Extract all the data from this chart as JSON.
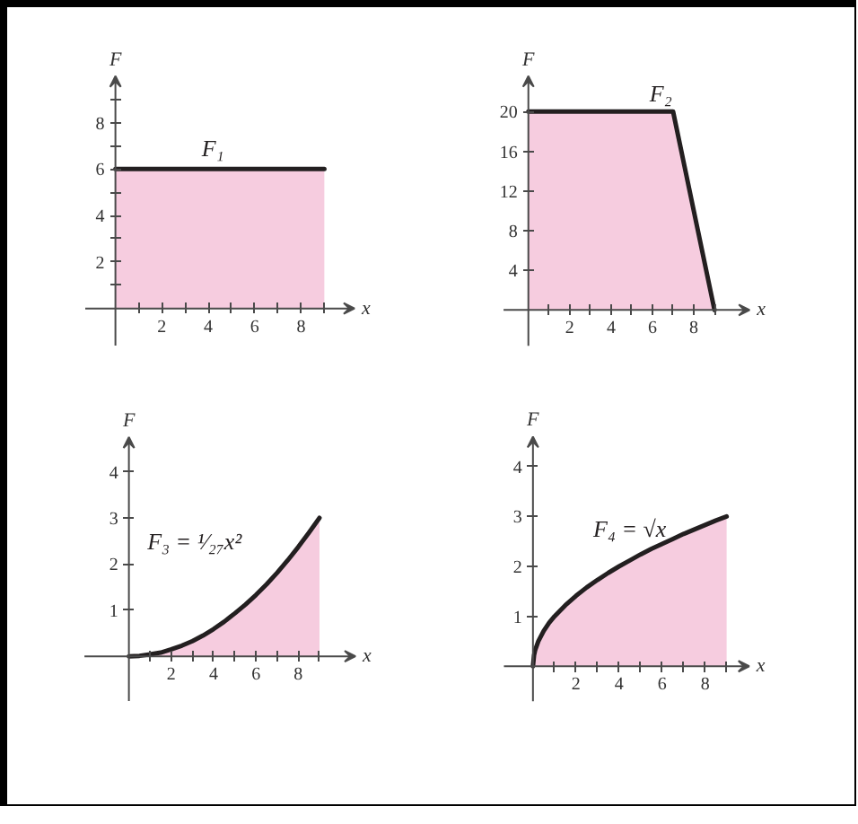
{
  "chart_data": [
    {
      "type": "area",
      "xlabel": "x",
      "ylabel": "F",
      "x": [
        0,
        9
      ],
      "series": [
        {
          "color": "#f6ccdf",
          "values": [
            6,
            6
          ]
        }
      ],
      "xlim": [
        -1.3,
        10.3
      ],
      "ylim": [
        -1.6,
        10
      ],
      "xticks": [
        {
          "value": 1,
          "label": null
        },
        2,
        {
          "value": 3,
          "label": null
        },
        4,
        {
          "value": 5,
          "label": null
        },
        6,
        {
          "value": 7,
          "label": null
        },
        8,
        {
          "value": 9,
          "label": null
        }
      ],
      "yticks": [
        {
          "value": 1,
          "label": null
        },
        2,
        {
          "value": 3,
          "label": null
        },
        4,
        {
          "value": 5,
          "label": null
        },
        6,
        {
          "value": 7,
          "label": null
        },
        8,
        {
          "value": 9,
          "label": null
        }
      ],
      "annotations": [
        "F₁"
      ]
    },
    {
      "type": "area",
      "xlabel": "x",
      "ylabel": "F",
      "x": [
        0,
        7,
        9
      ],
      "series": [
        {
          "color": "#f6ccdf",
          "values": [
            20,
            20,
            0
          ]
        }
      ],
      "xlim": [
        -1.2,
        10.7
      ],
      "ylim": [
        -3.6,
        23.6
      ],
      "xticks": [
        {
          "value": 1,
          "label": null
        },
        2,
        {
          "value": 3,
          "label": null
        },
        4,
        {
          "value": 5,
          "label": null
        },
        6,
        {
          "value": 7,
          "label": null
        },
        8,
        {
          "value": 9,
          "label": null
        }
      ],
      "yticks": [
        4,
        8,
        12,
        16,
        20
      ],
      "annotations": [
        "F₂"
      ]
    },
    {
      "type": "area",
      "xlabel": "x",
      "ylabel": "F",
      "x": [
        0,
        0.5,
        1,
        1.5,
        2,
        2.5,
        3,
        3.5,
        4,
        4.5,
        5,
        5.5,
        6,
        6.5,
        7,
        7.5,
        8,
        8.5,
        9
      ],
      "series": [
        {
          "color": "#f6ccdf",
          "values": [
            0,
            0.01,
            0.04,
            0.08,
            0.15,
            0.23,
            0.33,
            0.45,
            0.59,
            0.75,
            0.93,
            1.12,
            1.33,
            1.56,
            1.81,
            2.08,
            2.37,
            2.68,
            3
          ]
        }
      ],
      "xlim": [
        -2.1,
        10.7
      ],
      "ylim": [
        -0.97,
        4.75
      ],
      "xticks": [
        {
          "value": 1,
          "label": null
        },
        2,
        {
          "value": 3,
          "label": null
        },
        4,
        {
          "value": 5,
          "label": null
        },
        6,
        {
          "value": 7,
          "label": null
        },
        8,
        {
          "value": 9,
          "label": null
        }
      ],
      "yticks": [
        1,
        2,
        3,
        4
      ],
      "annotations": [
        "F₃ = ¹⁄₂₇x²"
      ]
    },
    {
      "type": "area",
      "xlabel": "x",
      "ylabel": "F",
      "x": [
        0,
        0.05,
        0.1,
        0.25,
        0.5,
        0.75,
        1,
        1.5,
        2,
        2.5,
        3,
        3.5,
        4,
        4.5,
        5,
        5.5,
        6,
        6.5,
        7,
        7.5,
        8,
        8.5,
        9
      ],
      "series": [
        {
          "color": "#f6ccdf",
          "values": [
            0,
            0.22,
            0.32,
            0.5,
            0.71,
            0.87,
            1,
            1.22,
            1.41,
            1.58,
            1.73,
            1.87,
            2,
            2.12,
            2.24,
            2.35,
            2.45,
            2.55,
            2.65,
            2.74,
            2.83,
            2.92,
            3
          ]
        }
      ],
      "xlim": [
        -1.35,
        10.05
      ],
      "ylim": [
        -0.7,
        4.6
      ],
      "xticks": [
        {
          "value": 1,
          "label": null
        },
        2,
        {
          "value": 3,
          "label": null
        },
        4,
        {
          "value": 5,
          "label": null
        },
        6,
        {
          "value": 7,
          "label": null
        },
        8,
        {
          "value": 9,
          "label": null
        }
      ],
      "yticks": [
        1,
        2,
        3,
        4
      ],
      "annotations": [
        "F₄ = √x"
      ]
    }
  ]
}
